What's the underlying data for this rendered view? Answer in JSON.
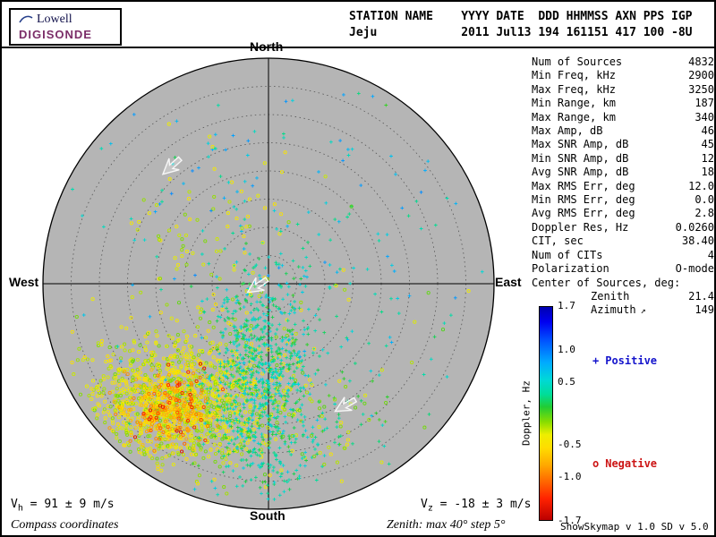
{
  "header": {
    "logo": {
      "line1": "Lowell",
      "line2": "DIGISONDE"
    },
    "columns": [
      {
        "label": "STATION NAME",
        "value": "Jeju",
        "width": 16
      },
      {
        "label": "YYYY",
        "value": "2011",
        "width": 5
      },
      {
        "label": "DATE",
        "value": "Jul13",
        "width": 6
      },
      {
        "label": "DDD",
        "value": "194",
        "width": 4
      },
      {
        "label": "HHMMSS",
        "value": "161151",
        "width": 7
      },
      {
        "label": "AXN",
        "value": "417",
        "width": 4
      },
      {
        "label": "PPS",
        "value": "100",
        "width": 4
      },
      {
        "label": "IGP",
        "value": "-8U",
        "width": 3
      }
    ]
  },
  "compass": {
    "north": "North",
    "south": "South",
    "east": "East",
    "west": "West"
  },
  "stats": {
    "rows": [
      {
        "label": "Num of Sources",
        "value": "4832"
      },
      {
        "label": "Min Freq, kHz",
        "value": "2900"
      },
      {
        "label": "Max Freq, kHz",
        "value": "3250"
      },
      {
        "label": "Min Range, km",
        "value": "187"
      },
      {
        "label": "Max Range, km",
        "value": "340"
      },
      {
        "label": "Max Amp, dB",
        "value": "46"
      },
      {
        "label": "Max SNR Amp, dB",
        "value": "45"
      },
      {
        "label": "Min SNR Amp, dB",
        "value": "12"
      },
      {
        "label": "Avg SNR Amp, dB",
        "value": "18"
      },
      {
        "label": "Max RMS Err, deg",
        "value": "12.0"
      },
      {
        "label": "Min RMS Err, deg",
        "value": "0.0"
      },
      {
        "label": "Avg RMS Err, deg",
        "value": "2.8"
      },
      {
        "label": "Doppler Res, Hz",
        "value": "0.0260"
      },
      {
        "label": "CIT, sec",
        "value": "38.40"
      },
      {
        "label": "Num of CITs",
        "value": "4"
      },
      {
        "label": "Polarization",
        "value": "O-mode"
      }
    ],
    "center_header": "Center of Sources, deg:",
    "center_rows": [
      {
        "label": "Zenith",
        "value": "21.4"
      },
      {
        "label": "Azimuth",
        "value": "149",
        "icon": "↗"
      }
    ]
  },
  "colorbar": {
    "label": "Doppler, Hz",
    "max": 1.7,
    "min": -1.7,
    "ticks": [
      1.7,
      1.0,
      0.5,
      -0.5,
      -1.0,
      -1.7
    ],
    "stops": [
      {
        "f": 0.0,
        "color": "#0000b0"
      },
      {
        "f": 0.07,
        "color": "#0000f0"
      },
      {
        "f": 0.16,
        "color": "#0055ff"
      },
      {
        "f": 0.26,
        "color": "#00aaff"
      },
      {
        "f": 0.34,
        "color": "#00d8d8"
      },
      {
        "f": 0.41,
        "color": "#00dd99"
      },
      {
        "f": 0.47,
        "color": "#22cc33"
      },
      {
        "f": 0.54,
        "color": "#88dd00"
      },
      {
        "f": 0.6,
        "color": "#eeee00"
      },
      {
        "f": 0.66,
        "color": "#ffdd00"
      },
      {
        "f": 0.74,
        "color": "#ffaa00"
      },
      {
        "f": 0.82,
        "color": "#ff6600"
      },
      {
        "f": 0.9,
        "color": "#ff2200"
      },
      {
        "f": 1.0,
        "color": "#bb0000"
      }
    ]
  },
  "legend": {
    "positive_marker": "+",
    "positive_label": "Positive",
    "positive_color": "#1414cc",
    "negative_marker": "o",
    "negative_label": "Negative",
    "negative_color": "#cc1414"
  },
  "footer": {
    "vh_prefix": "V",
    "vh_sub": "h",
    "vh_rest": " = 91 ± 9 m/s",
    "vz_prefix": "V",
    "vz_sub": "z",
    "vz_rest": " = -18 ± 3 m/s",
    "coords_note": "Compass coordinates",
    "zenith_note": "Zenith: max 40°  step 5°",
    "credits": "ShowSkymap v 1.0  SD v 5.0"
  },
  "chart_data": {
    "type": "scatter",
    "projection": "polar-sky",
    "station": "Jeju",
    "zenith_max_deg": 40,
    "zenith_step_deg": 5,
    "doppler_range_hz": [
      -1.7,
      1.7
    ],
    "num_sources": 4832,
    "v_horizontal_ms": {
      "value": 91,
      "error": 9
    },
    "v_vertical_ms": {
      "value": -18,
      "error": 3
    },
    "marker_convention": {
      "positive_doppler": "plus",
      "negative_doppler": "circle"
    },
    "arrows": [
      {
        "ux": -0.43,
        "uy": -0.52,
        "rot": 138
      },
      {
        "ux": -0.05,
        "uy": 0.01,
        "rot": 146
      },
      {
        "ux": 0.34,
        "uy": 0.54,
        "rot": 150
      }
    ],
    "clusters": [
      {
        "name": "main-westward-negative",
        "ux": -0.38,
        "uy": 0.52,
        "sx": 0.23,
        "sy": 0.155,
        "n": 1300,
        "dmin": -0.55,
        "dmax": -0.05
      },
      {
        "name": "orange-core",
        "ux": -0.45,
        "uy": 0.55,
        "sx": 0.1,
        "sy": 0.075,
        "n": 320,
        "dmin": -1.05,
        "dmax": -0.45
      },
      {
        "name": "red-specks",
        "ux": -0.42,
        "uy": 0.53,
        "sx": 0.12,
        "sy": 0.1,
        "n": 45,
        "dmin": -1.6,
        "dmax": -1.05
      },
      {
        "name": "central-positive-plume",
        "ux": -0.03,
        "uy": 0.38,
        "sx": 0.12,
        "sy": 0.22,
        "n": 750,
        "dmin": 0.05,
        "dmax": 0.65
      },
      {
        "name": "upper-sky-positive",
        "ux": 0.0,
        "uy": -0.35,
        "sx": 0.45,
        "sy": 0.33,
        "n": 130,
        "dmin": 0.25,
        "dmax": 0.95
      },
      {
        "name": "upper-west-negative",
        "ux": -0.27,
        "uy": -0.18,
        "sx": 0.17,
        "sy": 0.22,
        "n": 85,
        "dmin": -0.5,
        "dmax": -0.1
      },
      {
        "name": "southeast-mixed",
        "ux": 0.22,
        "uy": 0.63,
        "sx": 0.2,
        "sy": 0.15,
        "n": 110,
        "dmin": -0.45,
        "dmax": 0.55
      },
      {
        "name": "south-positive",
        "ux": -0.01,
        "uy": 0.8,
        "sx": 0.1,
        "sy": 0.08,
        "n": 55,
        "dmin": 0.1,
        "dmax": 0.6
      },
      {
        "name": "background-sparse",
        "ux": 0.0,
        "uy": 0.1,
        "sx": 0.55,
        "sy": 0.5,
        "n": 70,
        "dmin": -0.6,
        "dmax": 0.7
      },
      {
        "name": "east-sparse",
        "ux": 0.45,
        "uy": 0.15,
        "sx": 0.2,
        "sy": 0.25,
        "n": 30,
        "dmin": 0.2,
        "dmax": 0.8
      }
    ]
  }
}
